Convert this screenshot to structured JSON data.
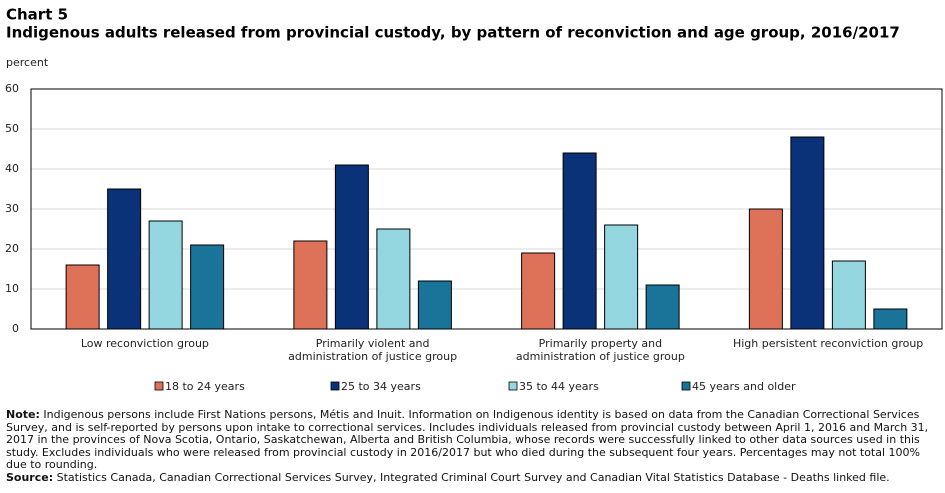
{
  "chart_data": {
    "type": "bar",
    "title": "Chart 5",
    "subtitle": "Indigenous adults released from provincial custody, by pattern of reconviction and age group, 2016/2017",
    "y_label": "percent",
    "categories": [
      [
        "Low reconviction group"
      ],
      [
        "Primarily violent and",
        "administration of justice group"
      ],
      [
        "Primarily property and",
        "administration of justice group"
      ],
      [
        "High persistent reconviction group"
      ]
    ],
    "series": [
      {
        "name": "18 to 24 years",
        "color": "#de7258",
        "values": [
          16,
          22,
          19,
          30
        ]
      },
      {
        "name": "25 to 34 years",
        "color": "#0a3278",
        "values": [
          35,
          41,
          44,
          48
        ]
      },
      {
        "name": "35 to 44 years",
        "color": "#95d7e0",
        "values": [
          27,
          25,
          26,
          17
        ]
      },
      {
        "name": "45 years and older",
        "color": "#1a7499",
        "values": [
          21,
          12,
          11,
          5
        ]
      }
    ],
    "ylim": [
      0,
      60
    ],
    "yticks": [
      0,
      10,
      20,
      30,
      40,
      50,
      60
    ],
    "grid": true,
    "legend": "bottom"
  },
  "notes": {
    "note_label": "Note:",
    "note": "Indigenous persons include First Nations persons, Métis and Inuit. Information on Indigenous identity is based on data from the Canadian Correctional Services Survey, and is self-reported by persons upon intake to correctional services. Includes individuals released from provincial custody between April 1, 2016 and March 31, 2017 in the provinces of Nova Scotia, Ontario, Saskatchewan, Alberta and British Columbia, whose records were successfully linked to other data sources used in this study. Excludes individuals who were released from provincial custody in 2016/2017 but who died during the subsequent four years. Percentages may not total 100% due to rounding.",
    "source_label": "Source:",
    "source": "Statistics Canada, Canadian Correctional Services Survey, Integrated Criminal Court Survey and Canadian Vital Statistics Database - Deaths linked file."
  }
}
